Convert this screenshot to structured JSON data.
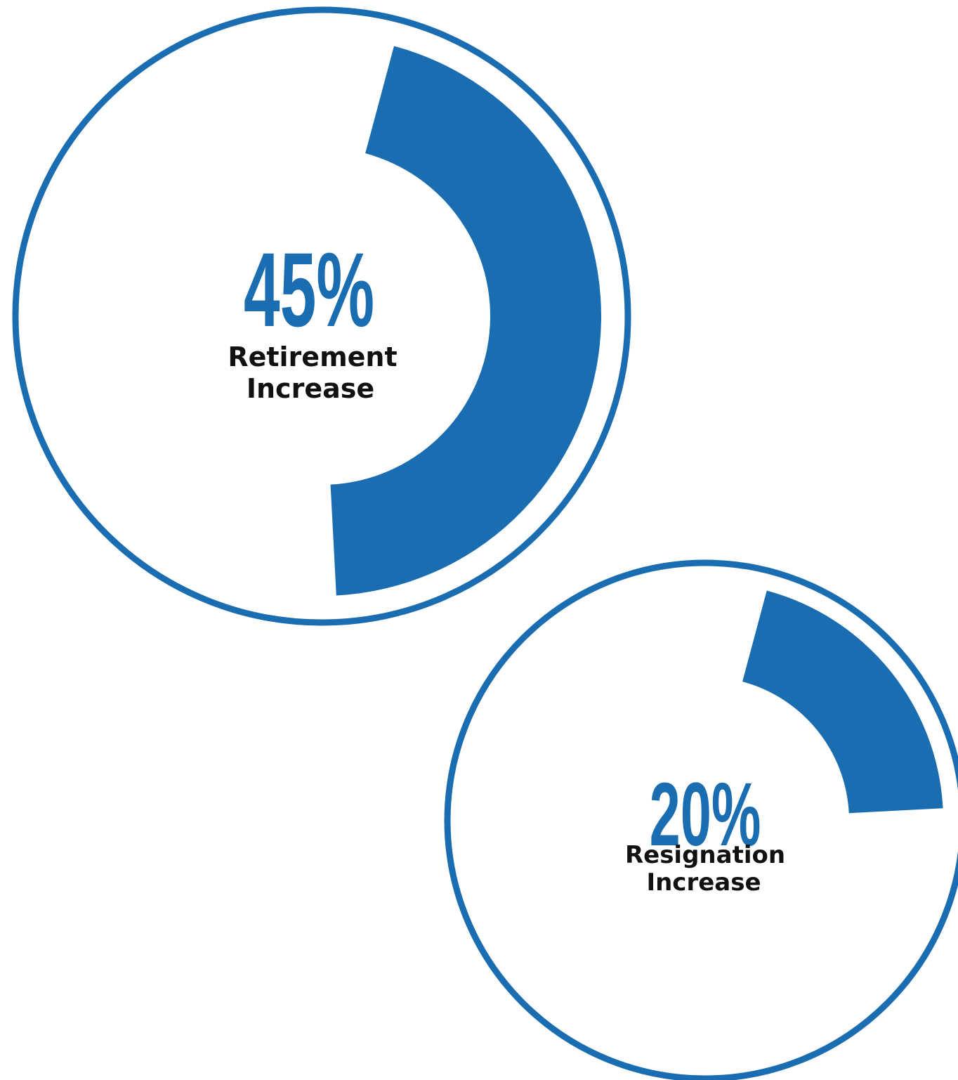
{
  "accent_color": "#1b6db1",
  "text_color": "#111111",
  "chart_data": [
    {
      "type": "pie",
      "value": 45,
      "unit": "%",
      "value_label": "45%",
      "label_lines": [
        "Retirement",
        "Increase"
      ]
    },
    {
      "type": "pie",
      "value": 20,
      "unit": "%",
      "value_label": "20%",
      "label_lines": [
        "Resignation",
        "Increase"
      ]
    }
  ]
}
